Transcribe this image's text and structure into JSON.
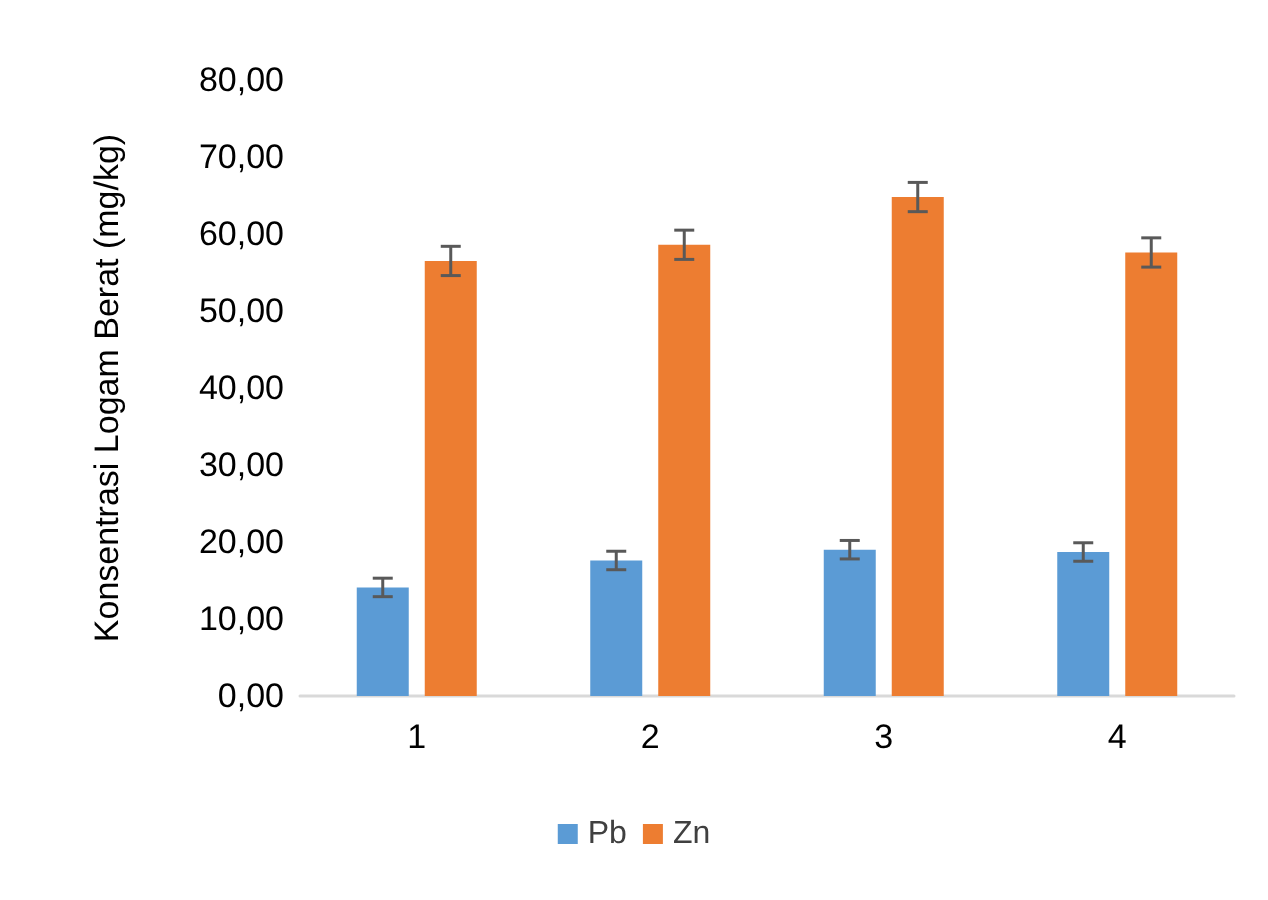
{
  "chart_data": {
    "type": "bar",
    "ylabel": "Konsentrasi Logam Berat (mg/kg)",
    "categories": [
      "1",
      "2",
      "3",
      "4"
    ],
    "series": [
      {
        "name": "Pb",
        "color": "#5b9bd5",
        "values": [
          14.1,
          17.6,
          19.0,
          18.7
        ],
        "errors": [
          1.2,
          1.2,
          1.2,
          1.2
        ]
      },
      {
        "name": "Zn",
        "color": "#ed7d31",
        "values": [
          56.5,
          58.6,
          64.8,
          57.6
        ],
        "errors": [
          1.9,
          1.9,
          1.9,
          1.9
        ]
      }
    ],
    "ylim": [
      0,
      80
    ],
    "yticks": [
      {
        "value": 0,
        "label": "0,00"
      },
      {
        "value": 10,
        "label": "10,00"
      },
      {
        "value": 20,
        "label": "20,00"
      },
      {
        "value": 30,
        "label": "30,00"
      },
      {
        "value": 40,
        "label": "40,00"
      },
      {
        "value": 50,
        "label": "50,00"
      },
      {
        "value": 60,
        "label": "60,00"
      },
      {
        "value": 70,
        "label": "70,00"
      },
      {
        "value": 80,
        "label": "80,00"
      }
    ],
    "legend": "bottom"
  }
}
